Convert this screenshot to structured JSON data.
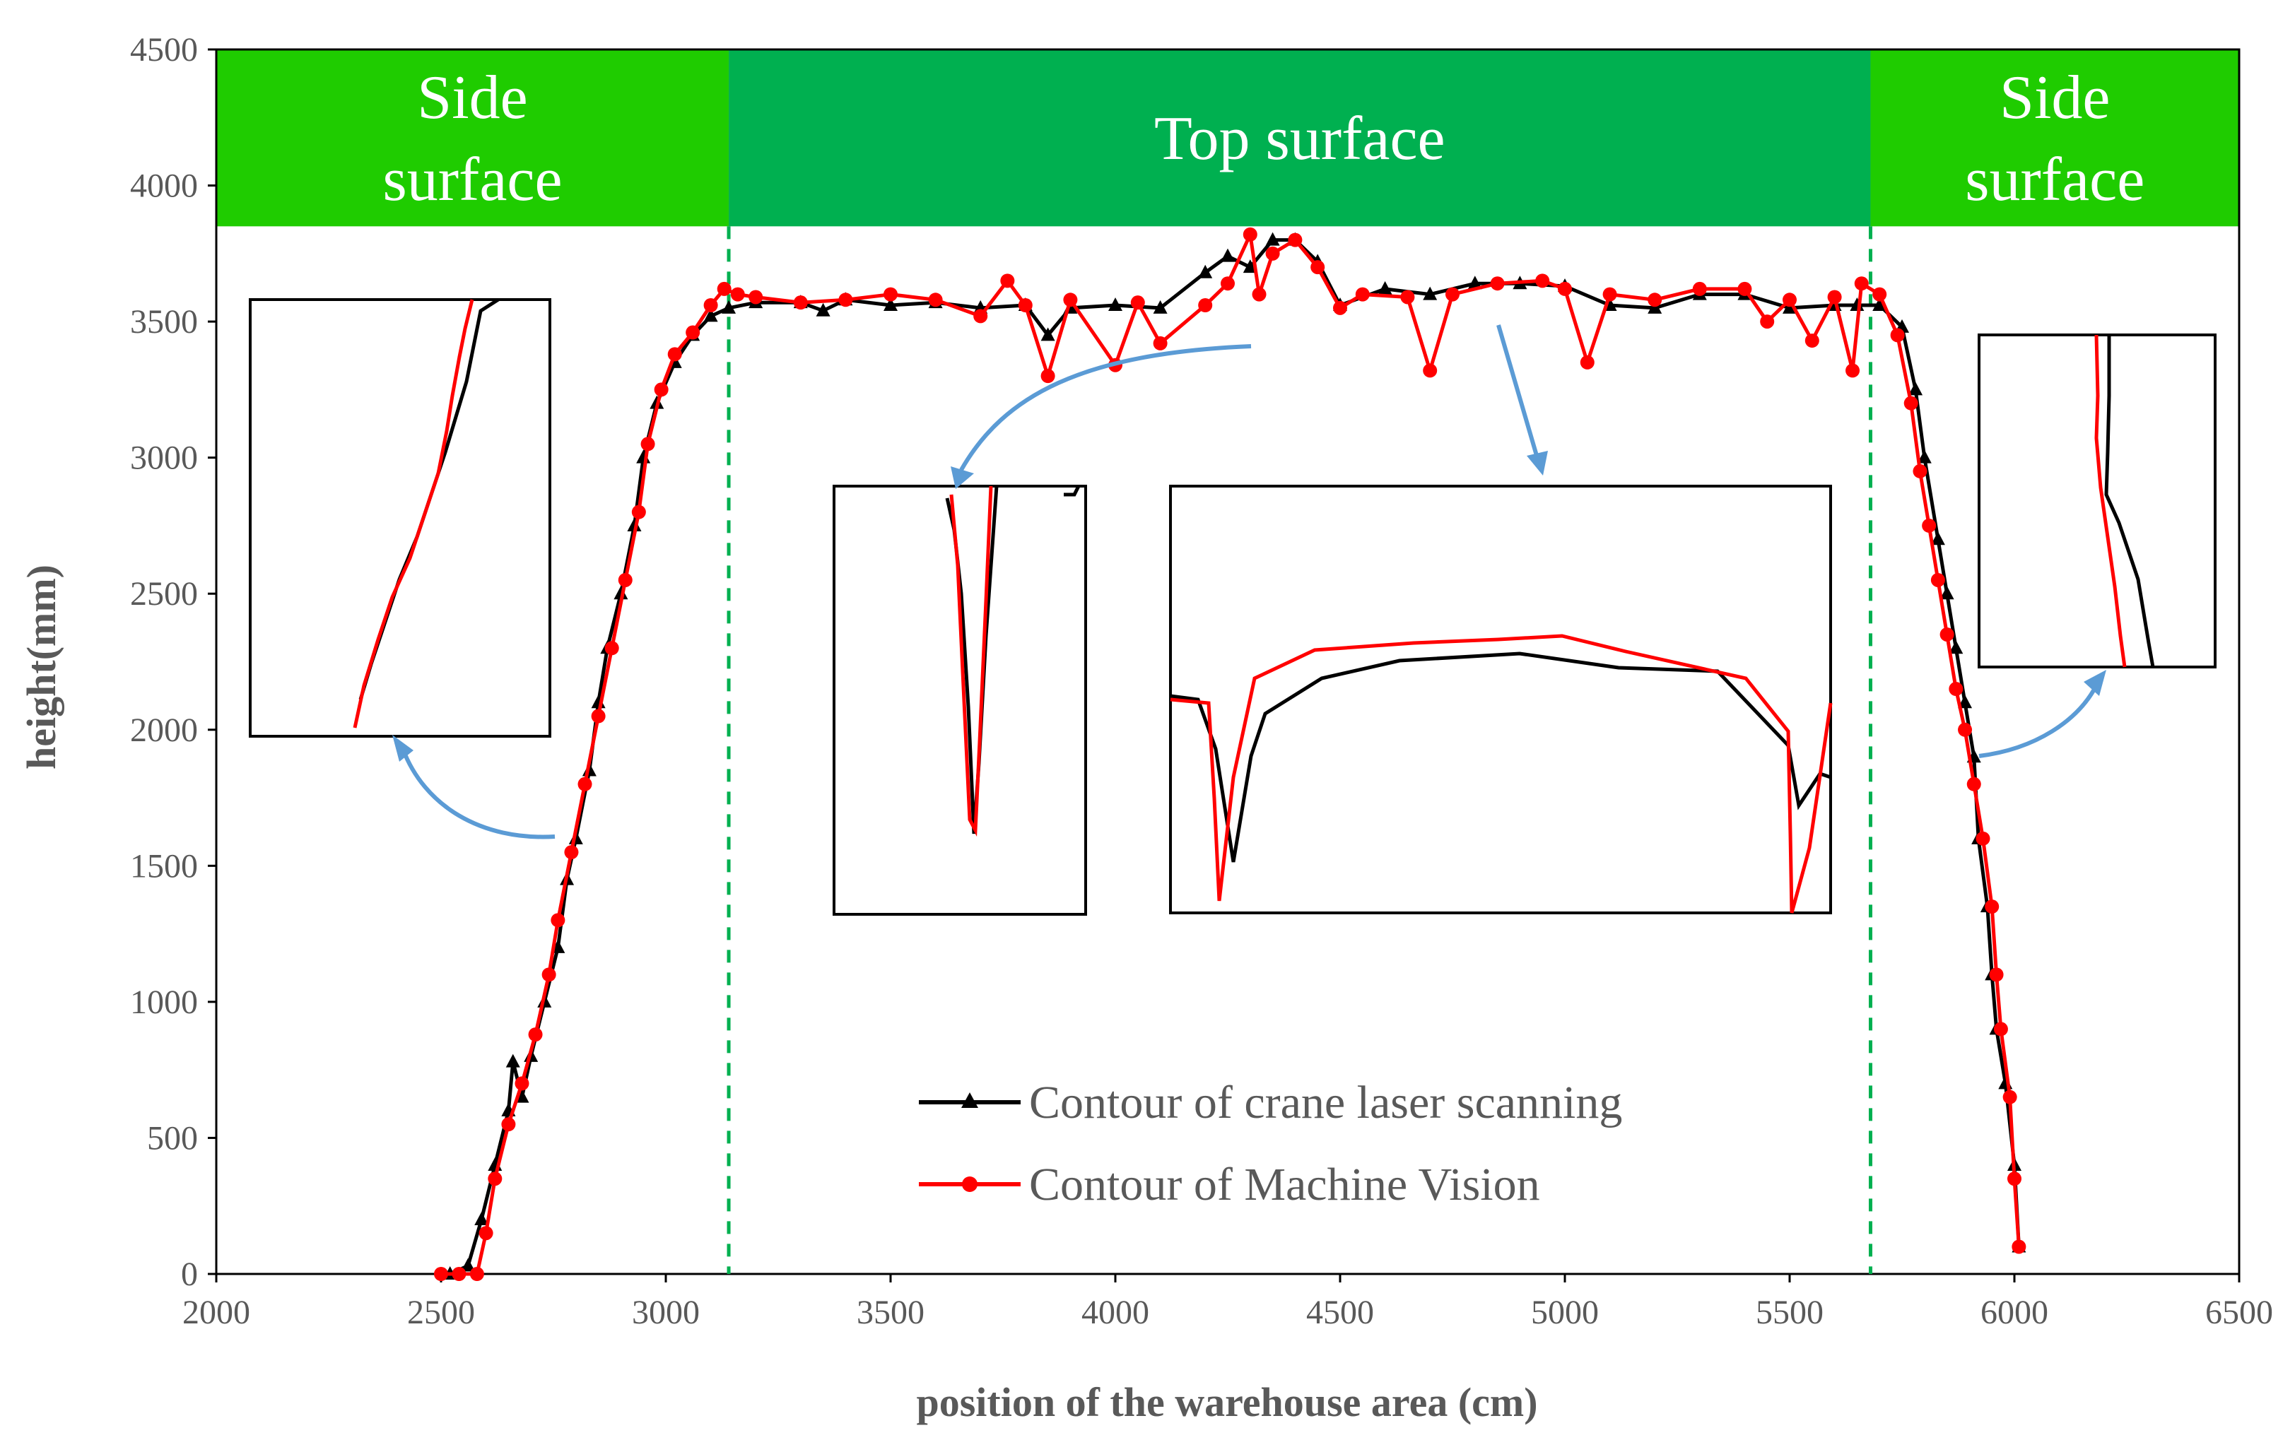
{
  "chart_data": {
    "type": "line",
    "xlabel": "position of the warehouse area (cm)",
    "ylabel": "height(mm)",
    "xlim": [
      2000,
      6500
    ],
    "ylim": [
      0,
      4500
    ],
    "xticks": [
      2000,
      2500,
      3000,
      3500,
      4000,
      4500,
      5000,
      5500,
      6000,
      6500
    ],
    "yticks": [
      0,
      500,
      1000,
      1500,
      2000,
      2500,
      3000,
      3500,
      4000,
      4500
    ],
    "regions": [
      {
        "label_lines": [
          "Side",
          "surface"
        ],
        "x_start": 2000,
        "x_end": 3140,
        "color": "#1fcc00"
      },
      {
        "label_lines": [
          "Top surface"
        ],
        "x_start": 3140,
        "x_end": 5680,
        "color": "#00b050"
      },
      {
        "label_lines": [
          "Side",
          "surface"
        ],
        "x_start": 5680,
        "x_end": 6500,
        "color": "#1fcc00"
      }
    ],
    "region_band_ylim": [
      3850,
      4500
    ],
    "dividers_x": [
      3140,
      5680
    ],
    "divider_color": "#00b050",
    "series": [
      {
        "name": "Contour of crane laser scanning",
        "color": "#000000",
        "marker": "triangle",
        "points": [
          [
            2520,
            0
          ],
          [
            2560,
            30
          ],
          [
            2590,
            200
          ],
          [
            2620,
            400
          ],
          [
            2650,
            600
          ],
          [
            2660,
            780
          ],
          [
            2680,
            650
          ],
          [
            2700,
            800
          ],
          [
            2730,
            1000
          ],
          [
            2760,
            1200
          ],
          [
            2780,
            1450
          ],
          [
            2800,
            1600
          ],
          [
            2830,
            1850
          ],
          [
            2850,
            2100
          ],
          [
            2870,
            2300
          ],
          [
            2900,
            2500
          ],
          [
            2930,
            2750
          ],
          [
            2950,
            3000
          ],
          [
            2980,
            3200
          ],
          [
            3020,
            3350
          ],
          [
            3060,
            3450
          ],
          [
            3100,
            3520
          ],
          [
            3140,
            3550
          ],
          [
            3200,
            3570
          ],
          [
            3300,
            3570
          ],
          [
            3350,
            3540
          ],
          [
            3400,
            3580
          ],
          [
            3500,
            3560
          ],
          [
            3600,
            3570
          ],
          [
            3700,
            3550
          ],
          [
            3800,
            3560
          ],
          [
            3850,
            3450
          ],
          [
            3900,
            3550
          ],
          [
            4000,
            3560
          ],
          [
            4100,
            3550
          ],
          [
            4200,
            3680
          ],
          [
            4250,
            3740
          ],
          [
            4300,
            3700
          ],
          [
            4350,
            3800
          ],
          [
            4400,
            3800
          ],
          [
            4450,
            3720
          ],
          [
            4500,
            3560
          ],
          [
            4600,
            3620
          ],
          [
            4700,
            3600
          ],
          [
            4800,
            3640
          ],
          [
            4900,
            3640
          ],
          [
            5000,
            3630
          ],
          [
            5100,
            3560
          ],
          [
            5200,
            3550
          ],
          [
            5300,
            3600
          ],
          [
            5400,
            3600
          ],
          [
            5500,
            3550
          ],
          [
            5600,
            3560
          ],
          [
            5650,
            3560
          ],
          [
            5700,
            3560
          ],
          [
            5750,
            3480
          ],
          [
            5780,
            3250
          ],
          [
            5800,
            3000
          ],
          [
            5830,
            2700
          ],
          [
            5850,
            2500
          ],
          [
            5870,
            2300
          ],
          [
            5890,
            2100
          ],
          [
            5910,
            1900
          ],
          [
            5920,
            1600
          ],
          [
            5940,
            1350
          ],
          [
            5950,
            1100
          ],
          [
            5960,
            900
          ],
          [
            5980,
            700
          ],
          [
            6000,
            400
          ],
          [
            6010,
            100
          ]
        ]
      },
      {
        "name": "Contour of Machine Vision",
        "color": "#ff0000",
        "marker": "circle",
        "points": [
          [
            2500,
            0
          ],
          [
            2540,
            0
          ],
          [
            2580,
            0
          ],
          [
            2600,
            150
          ],
          [
            2620,
            350
          ],
          [
            2650,
            550
          ],
          [
            2680,
            700
          ],
          [
            2710,
            880
          ],
          [
            2740,
            1100
          ],
          [
            2760,
            1300
          ],
          [
            2790,
            1550
          ],
          [
            2820,
            1800
          ],
          [
            2850,
            2050
          ],
          [
            2880,
            2300
          ],
          [
            2910,
            2550
          ],
          [
            2940,
            2800
          ],
          [
            2960,
            3050
          ],
          [
            2990,
            3250
          ],
          [
            3020,
            3380
          ],
          [
            3060,
            3460
          ],
          [
            3100,
            3560
          ],
          [
            3130,
            3620
          ],
          [
            3160,
            3600
          ],
          [
            3200,
            3590
          ],
          [
            3300,
            3570
          ],
          [
            3400,
            3580
          ],
          [
            3500,
            3600
          ],
          [
            3600,
            3580
          ],
          [
            3700,
            3520
          ],
          [
            3760,
            3650
          ],
          [
            3800,
            3560
          ],
          [
            3850,
            3300
          ],
          [
            3900,
            3580
          ],
          [
            4000,
            3340
          ],
          [
            4050,
            3570
          ],
          [
            4100,
            3420
          ],
          [
            4200,
            3560
          ],
          [
            4250,
            3640
          ],
          [
            4300,
            3820
          ],
          [
            4320,
            3600
          ],
          [
            4350,
            3750
          ],
          [
            4400,
            3800
          ],
          [
            4450,
            3700
          ],
          [
            4500,
            3550
          ],
          [
            4550,
            3600
          ],
          [
            4650,
            3590
          ],
          [
            4700,
            3320
          ],
          [
            4750,
            3600
          ],
          [
            4850,
            3640
          ],
          [
            4950,
            3650
          ],
          [
            5000,
            3620
          ],
          [
            5050,
            3350
          ],
          [
            5100,
            3600
          ],
          [
            5200,
            3580
          ],
          [
            5300,
            3620
          ],
          [
            5400,
            3620
          ],
          [
            5450,
            3500
          ],
          [
            5500,
            3580
          ],
          [
            5550,
            3430
          ],
          [
            5600,
            3590
          ],
          [
            5640,
            3320
          ],
          [
            5660,
            3640
          ],
          [
            5700,
            3600
          ],
          [
            5740,
            3450
          ],
          [
            5770,
            3200
          ],
          [
            5790,
            2950
          ],
          [
            5810,
            2750
          ],
          [
            5830,
            2550
          ],
          [
            5850,
            2350
          ],
          [
            5870,
            2150
          ],
          [
            5890,
            2000
          ],
          [
            5910,
            1800
          ],
          [
            5930,
            1600
          ],
          [
            5950,
            1350
          ],
          [
            5960,
            1100
          ],
          [
            5970,
            900
          ],
          [
            5990,
            650
          ],
          [
            6000,
            350
          ],
          [
            6010,
            100
          ]
        ]
      }
    ],
    "legend": {
      "position": "bottom-center"
    }
  }
}
